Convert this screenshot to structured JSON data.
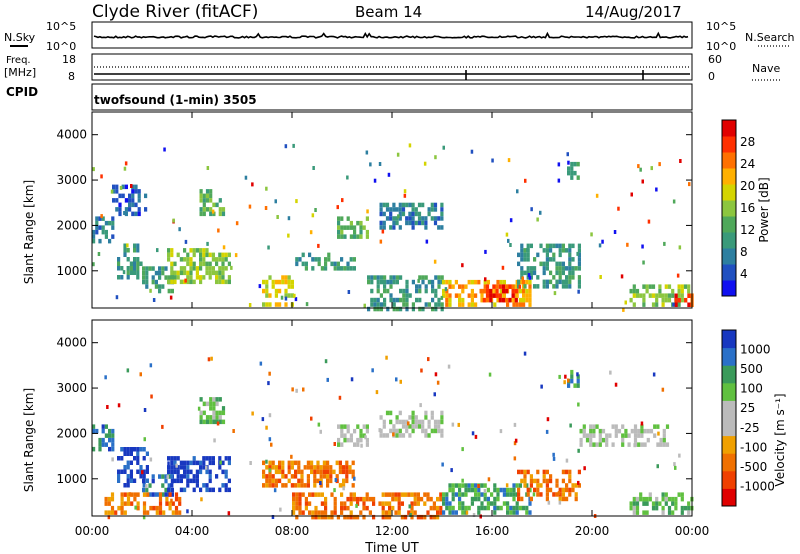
{
  "header": {
    "station": "Clyde River (fitACF)",
    "beam": "Beam 14",
    "date": "14/Aug/2017"
  },
  "noise_panel": {
    "left_label": "N.Sky",
    "right_label": "N.Search",
    "left_ticks": [
      "10^5",
      "10^0"
    ],
    "right_ticks": [
      "10^5",
      "10^0"
    ]
  },
  "freq_panel": {
    "left_label_1": "Freq.",
    "left_label_2": "[MHz]",
    "left_ticks": [
      "18",
      "8"
    ],
    "right_label": "Nave",
    "right_ticks": [
      "60",
      "0"
    ],
    "cpid_label": "CPID",
    "cpid_text": "twofsound (1-min) 3505"
  },
  "time_axis": {
    "label": "Time UT",
    "ticks": [
      "00:00",
      "04:00",
      "08:00",
      "12:00",
      "16:00",
      "20:00",
      "00:00"
    ]
  },
  "chart_data": [
    {
      "type": "heatmap",
      "name": "power",
      "ylabel": "Slant Range [km]",
      "yticks": [
        "1000",
        "2000",
        "3000",
        "4000"
      ],
      "ylim": [
        180,
        4500
      ],
      "xlim_hours": [
        0,
        24
      ],
      "colorbar": {
        "label": "Power [dB]",
        "ticks": [
          "4",
          "8",
          "12",
          "16",
          "20",
          "24",
          "28"
        ],
        "colors": [
          "#1010f0",
          "#2050c0",
          "#2d7fa0",
          "#3a9a7a",
          "#4fa85a",
          "#8cc63f",
          "#d4d400",
          "#ffb000",
          "#ff7000",
          "#ff3000",
          "#e00000"
        ]
      },
      "regions": [
        {
          "t0": 0.0,
          "t1": 0.8,
          "r0": 1700,
          "r1": 2200,
          "level": 2
        },
        {
          "t0": 0.8,
          "t1": 2.2,
          "r0": 2300,
          "r1": 2900,
          "level": 1
        },
        {
          "t0": 1.0,
          "t1": 2.0,
          "r0": 900,
          "r1": 1700,
          "level": 3
        },
        {
          "t0": 2.0,
          "t1": 3.2,
          "r0": 600,
          "r1": 1100,
          "level": 3
        },
        {
          "t0": 3.0,
          "t1": 5.5,
          "r0": 800,
          "r1": 1500,
          "level": 5
        },
        {
          "t0": 4.3,
          "t1": 5.2,
          "r0": 2300,
          "r1": 2800,
          "level": 4
        },
        {
          "t0": 6.8,
          "t1": 8.0,
          "r0": 300,
          "r1": 900,
          "level": 6
        },
        {
          "t0": 8.0,
          "t1": 10.5,
          "r0": 1100,
          "r1": 1400,
          "level": 3
        },
        {
          "t0": 9.8,
          "t1": 11.0,
          "r0": 1800,
          "r1": 2200,
          "level": 4
        },
        {
          "t0": 11.5,
          "t1": 14.0,
          "r0": 2000,
          "r1": 2500,
          "level": 2
        },
        {
          "t0": 11.0,
          "t1": 14.0,
          "r0": 200,
          "r1": 900,
          "level": 3
        },
        {
          "t0": 14.0,
          "t1": 17.5,
          "r0": 300,
          "r1": 800,
          "level": 7
        },
        {
          "t0": 15.5,
          "t1": 17.0,
          "r0": 400,
          "r1": 700,
          "level": 9
        },
        {
          "t0": 17.0,
          "t1": 19.5,
          "r0": 700,
          "r1": 1600,
          "level": 3
        },
        {
          "t0": 19.0,
          "t1": 19.5,
          "r0": 3100,
          "r1": 3400,
          "level": 3
        },
        {
          "t0": 21.5,
          "t1": 24.0,
          "r0": 250,
          "r1": 700,
          "level": 5
        },
        {
          "t0": 23.3,
          "t1": 24.0,
          "r0": 200,
          "r1": 500,
          "level": 9
        }
      ]
    },
    {
      "type": "heatmap",
      "name": "velocity",
      "ylabel": "Slant Range [km]",
      "yticks": [
        "1000",
        "2000",
        "3000",
        "4000"
      ],
      "ylim": [
        180,
        4500
      ],
      "xlim_hours": [
        0,
        24
      ],
      "colorbar": {
        "label": "Velocity [m s⁻¹]",
        "ticks": [
          "1000",
          "500",
          "100",
          "25",
          "-25",
          "-100",
          "-500",
          "-1000"
        ],
        "colors": [
          "#1838c0",
          "#2a70c8",
          "#3a9a5a",
          "#60c040",
          "#bbbbbb",
          "#bbbbbb",
          "#f0a000",
          "#f07000",
          "#f04000",
          "#e00000"
        ]
      },
      "regions": [
        {
          "t0": 0.0,
          "t1": 0.8,
          "r0": 1700,
          "r1": 2200,
          "level": 1
        },
        {
          "t0": 1.0,
          "t1": 2.2,
          "r0": 900,
          "r1": 1700,
          "level": 0
        },
        {
          "t0": 2.0,
          "t1": 3.2,
          "r0": 700,
          "r1": 1100,
          "level": 1
        },
        {
          "t0": 3.0,
          "t1": 5.5,
          "r0": 800,
          "r1": 1500,
          "level": 0
        },
        {
          "t0": 4.3,
          "t1": 5.2,
          "r0": 2300,
          "r1": 2800,
          "level": 3
        },
        {
          "t0": 0.5,
          "t1": 3.5,
          "r0": 300,
          "r1": 700,
          "level": 7
        },
        {
          "t0": 6.8,
          "t1": 10.5,
          "r0": 900,
          "r1": 1400,
          "level": 7
        },
        {
          "t0": 9.8,
          "t1": 11.0,
          "r0": 1800,
          "r1": 2200,
          "level": 4
        },
        {
          "t0": 11.5,
          "t1": 14.0,
          "r0": 2000,
          "r1": 2500,
          "level": 4
        },
        {
          "t0": 8.0,
          "t1": 14.0,
          "r0": 200,
          "r1": 700,
          "level": 7
        },
        {
          "t0": 14.0,
          "t1": 17.5,
          "r0": 300,
          "r1": 900,
          "level": 2
        },
        {
          "t0": 17.0,
          "t1": 19.5,
          "r0": 600,
          "r1": 1200,
          "level": 7
        },
        {
          "t0": 19.0,
          "t1": 19.5,
          "r0": 3100,
          "r1": 3400,
          "level": 2
        },
        {
          "t0": 19.5,
          "t1": 23.0,
          "r0": 1800,
          "r1": 2200,
          "level": 4
        },
        {
          "t0": 21.5,
          "t1": 24.0,
          "r0": 250,
          "r1": 700,
          "level": 3
        }
      ]
    }
  ]
}
